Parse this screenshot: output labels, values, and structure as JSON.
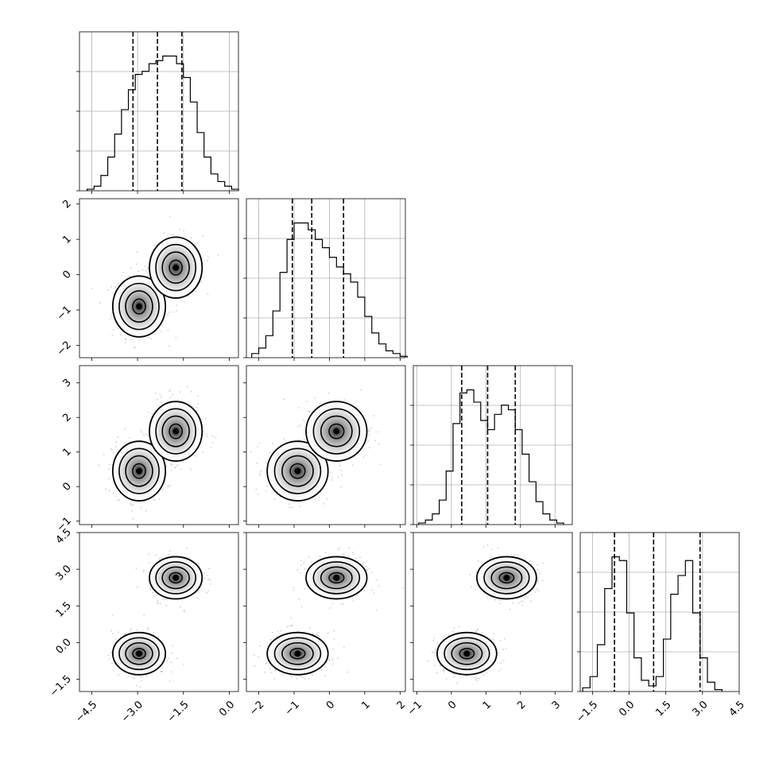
{
  "chart_data": {
    "type": "corner",
    "title": "",
    "grid": true,
    "parameters": [
      "",
      "",
      "",
      ""
    ],
    "axis_ranges": [
      [
        -4.9,
        0.3
      ],
      [
        -2.35,
        2.15
      ],
      [
        -1.1,
        3.5
      ],
      [
        -2.0,
        4.5
      ]
    ],
    "ticks": [
      [
        -4.5,
        -3.0,
        -1.5,
        0.0
      ],
      [
        -2,
        -1,
        0,
        1,
        2
      ],
      [
        -1,
        0,
        1,
        2,
        3
      ],
      [
        -1.5,
        0.0,
        1.5,
        3.0,
        4.5
      ]
    ],
    "tick_labels": {
      "p0": [
        "−4.5",
        "−3.0",
        "−1.5",
        "0.0"
      ],
      "p1": [
        "−2",
        "−1",
        "0",
        "1",
        "2"
      ],
      "p2": [
        "−1",
        "0",
        "1",
        "2",
        "3"
      ],
      "p3": [
        "−1.5",
        "0.0",
        "1.5",
        "3.0",
        "4.5"
      ]
    },
    "quantiles": [
      [
        -3.15,
        -2.35,
        -1.55
      ],
      [
        -1.05,
        -0.5,
        0.4
      ],
      [
        0.3,
        1.05,
        1.85
      ],
      [
        -0.6,
        1.0,
        2.9
      ]
    ],
    "histograms": [
      {
        "start": -4.65,
        "step": 0.225,
        "counts": [
          1,
          3,
          10,
          22,
          37,
          53,
          66,
          76,
          78,
          83,
          85,
          88,
          88,
          83,
          74,
          58,
          38,
          22,
          11,
          6,
          3,
          1
        ]
      },
      {
        "start": -2.2,
        "step": 0.2,
        "counts": [
          3,
          7,
          16,
          34,
          62,
          86,
          98,
          98,
          93,
          86,
          80,
          73,
          66,
          61,
          55,
          44,
          30,
          18,
          10,
          5,
          3,
          1
        ]
      },
      {
        "start": -0.95,
        "step": 0.2,
        "counts": [
          1,
          3,
          7,
          16,
          35,
          66,
          86,
          88,
          80,
          68,
          62,
          72,
          78,
          75,
          62,
          46,
          28,
          15,
          7,
          3,
          1
        ]
      },
      {
        "start": -1.9,
        "step": 0.3,
        "counts": [
          2,
          8,
          25,
          55,
          72,
          70,
          42,
          18,
          6,
          3,
          8,
          28,
          52,
          62,
          70,
          42,
          18,
          5,
          1
        ]
      }
    ],
    "modes": [
      {
        "p0": -2.95,
        "p1": -0.9,
        "p2": 0.45,
        "p3": -0.45
      },
      {
        "p0": -1.75,
        "p1": 0.2,
        "p2": 1.6,
        "p3": 2.65
      }
    ]
  }
}
